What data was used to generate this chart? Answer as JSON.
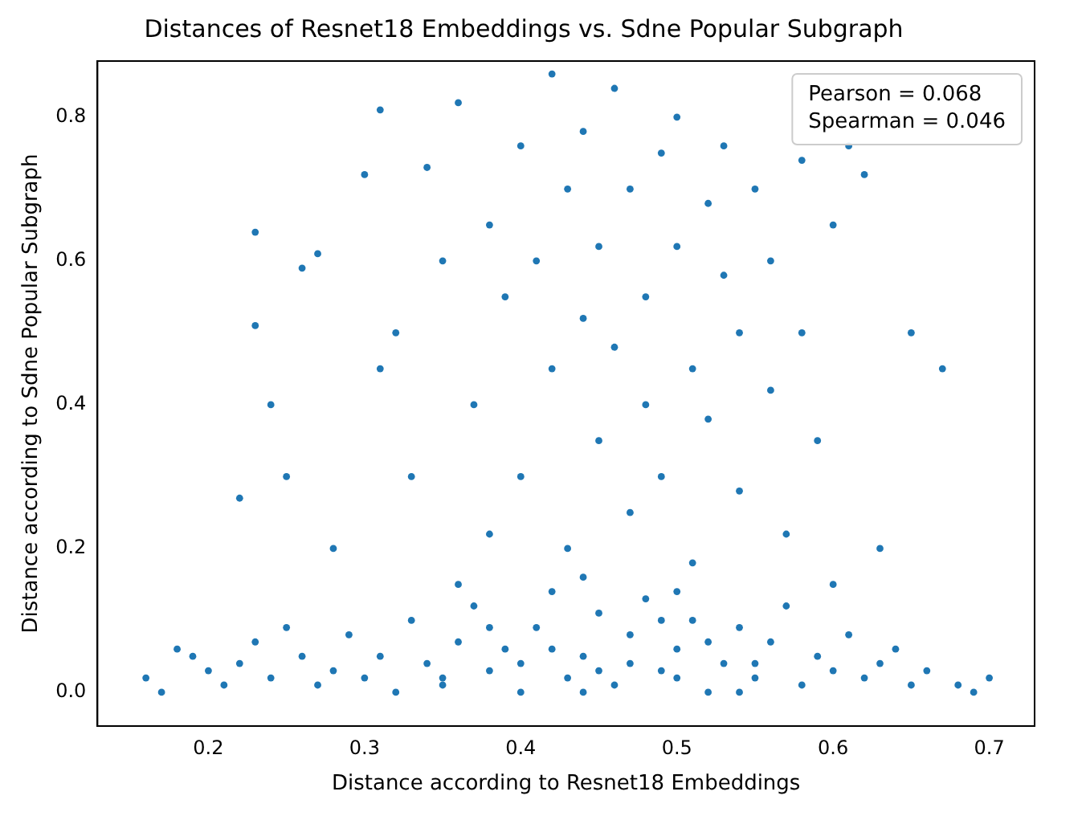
{
  "chart_data": {
    "type": "scatter",
    "title": "Distances of Resnet18 Embeddings vs. Sdne Popular Subgraph",
    "xlabel": "Distance according to Resnet18 Embeddings",
    "ylabel": "Distance according to Sdne Popular Subgraph",
    "annotations": [
      "Pearson = 0.068",
      "Spearman = 0.046"
    ],
    "x": [
      0.16,
      0.17,
      0.18,
      0.19,
      0.2,
      0.21,
      0.22,
      0.23,
      0.24,
      0.25,
      0.26,
      0.27,
      0.28,
      0.29,
      0.3,
      0.31,
      0.32,
      0.33,
      0.34,
      0.35,
      0.36,
      0.37,
      0.38,
      0.39,
      0.4,
      0.41,
      0.42,
      0.43,
      0.44,
      0.45,
      0.46,
      0.47,
      0.48,
      0.49,
      0.5,
      0.51,
      0.52,
      0.53,
      0.54,
      0.55,
      0.56,
      0.57,
      0.58,
      0.59,
      0.6,
      0.61,
      0.62,
      0.63,
      0.64,
      0.65,
      0.66,
      0.68,
      0.7,
      0.69,
      0.35,
      0.4,
      0.45,
      0.5,
      0.55,
      0.42,
      0.47,
      0.52,
      0.38,
      0.44,
      0.49,
      0.54,
      0.22,
      0.23,
      0.23,
      0.24,
      0.25,
      0.26,
      0.27,
      0.28,
      0.3,
      0.31,
      0.31,
      0.32,
      0.33,
      0.34,
      0.35,
      0.36,
      0.37,
      0.38,
      0.38,
      0.39,
      0.4,
      0.4,
      0.41,
      0.42,
      0.42,
      0.43,
      0.43,
      0.44,
      0.44,
      0.45,
      0.45,
      0.46,
      0.46,
      0.47,
      0.47,
      0.48,
      0.48,
      0.49,
      0.49,
      0.5,
      0.5,
      0.51,
      0.51,
      0.52,
      0.52,
      0.53,
      0.53,
      0.54,
      0.54,
      0.55,
      0.56,
      0.56,
      0.57,
      0.58,
      0.58,
      0.59,
      0.6,
      0.61,
      0.62,
      0.63,
      0.65,
      0.67,
      0.6,
      0.36,
      0.44,
      0.5
    ],
    "values": [
      0.02,
      0.0,
      0.06,
      0.05,
      0.03,
      0.01,
      0.04,
      0.07,
      0.02,
      0.09,
      0.05,
      0.01,
      0.03,
      0.08,
      0.02,
      0.05,
      0.0,
      0.1,
      0.04,
      0.01,
      0.07,
      0.12,
      0.03,
      0.06,
      0.0,
      0.09,
      0.14,
      0.02,
      0.05,
      0.11,
      0.01,
      0.08,
      0.13,
      0.03,
      0.06,
      0.1,
      0.0,
      0.04,
      0.09,
      0.02,
      0.07,
      0.12,
      0.01,
      0.05,
      0.03,
      0.08,
      0.02,
      0.04,
      0.06,
      0.01,
      0.03,
      0.01,
      0.02,
      0.0,
      0.02,
      0.04,
      0.03,
      0.02,
      0.04,
      0.06,
      0.04,
      0.07,
      0.09,
      0.0,
      0.1,
      0.0,
      0.27,
      0.64,
      0.51,
      0.4,
      0.3,
      0.59,
      0.61,
      0.2,
      0.72,
      0.81,
      0.45,
      0.5,
      0.3,
      0.73,
      0.6,
      0.82,
      0.4,
      0.65,
      0.22,
      0.55,
      0.76,
      0.3,
      0.6,
      0.86,
      0.45,
      0.7,
      0.2,
      0.52,
      0.78,
      0.35,
      0.62,
      0.84,
      0.48,
      0.25,
      0.7,
      0.55,
      0.4,
      0.75,
      0.3,
      0.62,
      0.8,
      0.45,
      0.18,
      0.68,
      0.38,
      0.58,
      0.76,
      0.28,
      0.5,
      0.7,
      0.42,
      0.6,
      0.22,
      0.74,
      0.5,
      0.35,
      0.65,
      0.76,
      0.72,
      0.2,
      0.5,
      0.45,
      0.15,
      0.15,
      0.16,
      0.14
    ],
    "color": "#1f77b4",
    "marker": "circle",
    "xlim": [
      0.129,
      0.729
    ],
    "ylim": [
      -0.047,
      0.878
    ],
    "xticks": [
      0.2,
      0.3,
      0.4,
      0.5,
      0.6,
      0.7
    ],
    "yticks": [
      {
        "value": 0,
        "label": "0.0"
      },
      0.2,
      0.4,
      0.6,
      0.8
    ],
    "grid": false
  }
}
